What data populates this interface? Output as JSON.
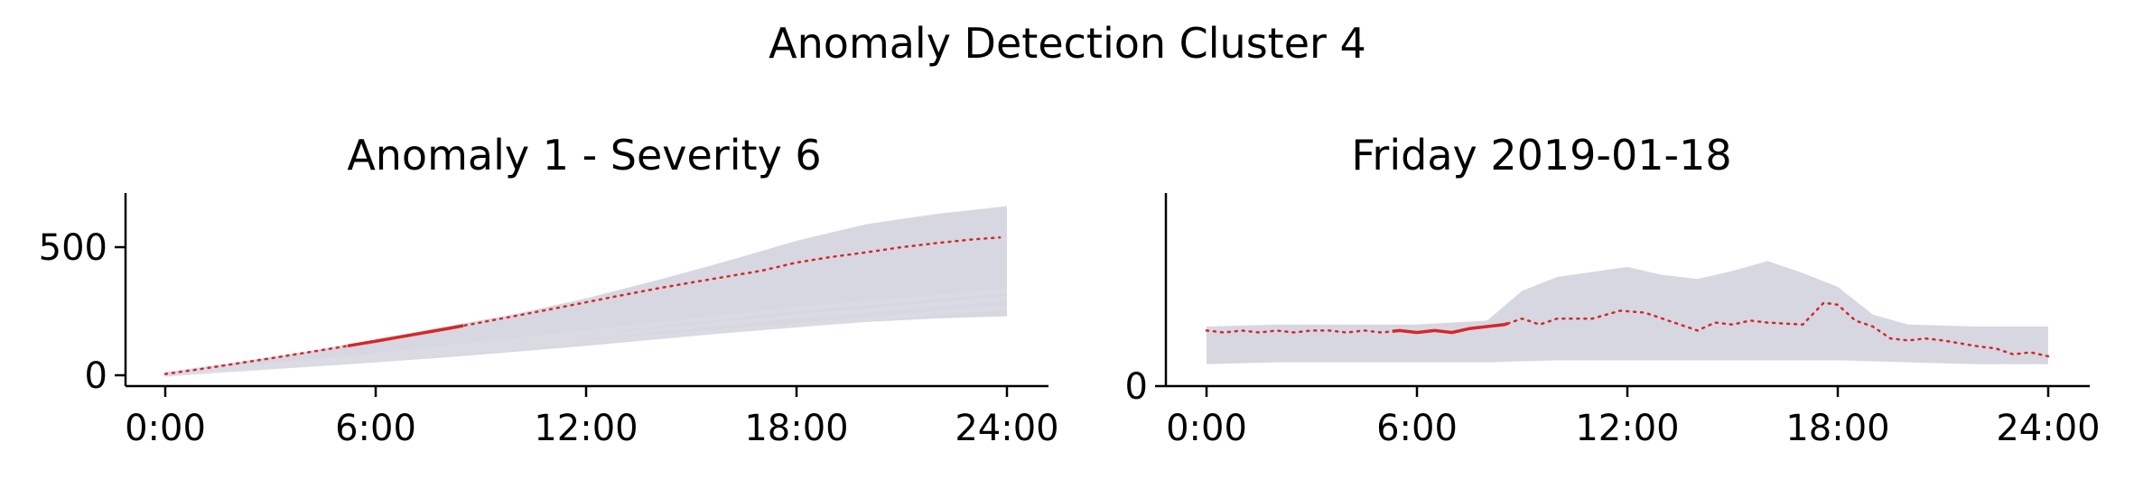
{
  "figure": {
    "title": "Anomaly Detection Cluster 4"
  },
  "chart_data": [
    {
      "type": "line",
      "title": "Anomaly 1 - Severity 6",
      "xlabel": "",
      "ylabel": "",
      "x_range_hours": [
        0,
        24
      ],
      "ylim": [
        -10,
        700
      ],
      "xticks": [
        {
          "value": 0,
          "label": "0:00"
        },
        {
          "value": 6,
          "label": "6:00"
        },
        {
          "value": 12,
          "label": "12:00"
        },
        {
          "value": 18,
          "label": "18:00"
        },
        {
          "value": 24,
          "label": "24:00"
        }
      ],
      "yticks": [
        {
          "value": 0,
          "label": "0"
        },
        {
          "value": 500,
          "label": "500"
        }
      ],
      "grid": false,
      "background_band": {
        "color": "#d3d3de",
        "lower": [
          [
            0,
            2
          ],
          [
            2,
            16
          ],
          [
            4,
            32
          ],
          [
            6,
            50
          ],
          [
            8,
            70
          ],
          [
            10,
            92
          ],
          [
            12,
            115
          ],
          [
            14,
            140
          ],
          [
            16,
            165
          ],
          [
            18,
            188
          ],
          [
            20,
            208
          ],
          [
            22,
            222
          ],
          [
            24,
            230
          ]
        ],
        "upper": [
          [
            0,
            12
          ],
          [
            2,
            50
          ],
          [
            4,
            92
          ],
          [
            6,
            140
          ],
          [
            8,
            190
          ],
          [
            10,
            240
          ],
          [
            12,
            300
          ],
          [
            14,
            370
          ],
          [
            16,
            445
          ],
          [
            18,
            525
          ],
          [
            20,
            590
          ],
          [
            22,
            630
          ],
          [
            24,
            660
          ]
        ],
        "faint_lines": [
          [
            [
              0,
              3
            ],
            [
              6,
              60
            ],
            [
              12,
              130
            ],
            [
              18,
              195
            ],
            [
              24,
              265
            ]
          ],
          [
            [
              0,
              4
            ],
            [
              6,
              70
            ],
            [
              12,
              150
            ],
            [
              18,
              230
            ],
            [
              24,
              300
            ]
          ],
          [
            [
              0,
              5
            ],
            [
              6,
              78
            ],
            [
              12,
              168
            ],
            [
              18,
              258
            ],
            [
              24,
              330
            ]
          ]
        ]
      },
      "anomaly_series": {
        "color": "#d62728",
        "observed_hours": [
          5.2,
          8.5
        ],
        "points": [
          [
            0,
            5
          ],
          [
            1,
            24
          ],
          [
            2,
            45
          ],
          [
            3,
            66
          ],
          [
            4,
            88
          ],
          [
            5,
            110
          ],
          [
            6,
            133
          ],
          [
            7,
            157
          ],
          [
            8,
            181
          ],
          [
            9,
            206
          ],
          [
            10,
            232
          ],
          [
            11,
            258
          ],
          [
            12,
            285
          ],
          [
            13,
            312
          ],
          [
            14,
            338
          ],
          [
            15,
            362
          ],
          [
            16,
            385
          ],
          [
            17,
            408
          ],
          [
            18,
            440
          ],
          [
            19,
            462
          ],
          [
            20,
            480
          ],
          [
            21,
            500
          ],
          [
            22,
            516
          ],
          [
            23,
            530
          ],
          [
            23.8,
            538
          ]
        ]
      }
    },
    {
      "type": "line",
      "title": "Friday 2019-01-18",
      "xlabel": "",
      "ylabel": "",
      "x_range_hours": [
        0,
        24
      ],
      "ylim": [
        0,
        100
      ],
      "xticks": [
        {
          "value": 0,
          "label": "0:00"
        },
        {
          "value": 6,
          "label": "6:00"
        },
        {
          "value": 12,
          "label": "12:00"
        },
        {
          "value": 18,
          "label": "18:00"
        },
        {
          "value": 24,
          "label": "24:00"
        }
      ],
      "yticks": [
        {
          "value": 0,
          "label": "0"
        }
      ],
      "grid": false,
      "background_band": {
        "color": "#d3d3de",
        "lower": [
          [
            0,
            11
          ],
          [
            2,
            12
          ],
          [
            4,
            12
          ],
          [
            6,
            12
          ],
          [
            8,
            12
          ],
          [
            10,
            13
          ],
          [
            12,
            13
          ],
          [
            14,
            13
          ],
          [
            16,
            13
          ],
          [
            18,
            13
          ],
          [
            20,
            12
          ],
          [
            22,
            11
          ],
          [
            24,
            11
          ]
        ],
        "upper": [
          [
            0,
            30
          ],
          [
            2,
            31
          ],
          [
            4,
            31
          ],
          [
            6,
            31
          ],
          [
            8,
            33
          ],
          [
            9,
            48
          ],
          [
            10,
            55
          ],
          [
            12,
            60
          ],
          [
            13,
            56
          ],
          [
            14,
            54
          ],
          [
            15,
            58
          ],
          [
            16,
            63
          ],
          [
            17,
            57
          ],
          [
            18,
            50
          ],
          [
            19,
            36
          ],
          [
            20,
            31
          ],
          [
            22,
            30
          ],
          [
            24,
            30
          ]
        ],
        "faint_lines": []
      },
      "anomaly_series": {
        "color": "#d62728",
        "observed_hours": [
          5.3,
          8.6
        ],
        "points": [
          [
            0,
            28
          ],
          [
            0.5,
            27
          ],
          [
            1,
            28
          ],
          [
            1.5,
            27
          ],
          [
            2,
            28
          ],
          [
            2.5,
            27
          ],
          [
            3,
            28
          ],
          [
            3.5,
            28
          ],
          [
            4,
            27
          ],
          [
            4.5,
            28
          ],
          [
            5,
            27
          ],
          [
            5.5,
            28
          ],
          [
            6,
            27
          ],
          [
            6.5,
            28
          ],
          [
            7,
            27
          ],
          [
            7.5,
            29
          ],
          [
            8,
            30
          ],
          [
            8.5,
            31
          ],
          [
            9,
            34
          ],
          [
            9.5,
            31
          ],
          [
            10,
            34
          ],
          [
            11,
            34
          ],
          [
            11.8,
            38
          ],
          [
            12.5,
            37
          ],
          [
            13,
            34
          ],
          [
            14,
            28
          ],
          [
            14.5,
            32
          ],
          [
            15,
            31
          ],
          [
            15.5,
            33
          ],
          [
            16,
            32
          ],
          [
            17,
            31
          ],
          [
            17.6,
            42
          ],
          [
            18,
            41
          ],
          [
            18.5,
            33
          ],
          [
            19,
            30
          ],
          [
            19.5,
            24
          ],
          [
            20,
            23
          ],
          [
            20.5,
            24
          ],
          [
            21,
            23
          ],
          [
            22,
            20
          ],
          [
            22.5,
            19
          ],
          [
            23,
            16
          ],
          [
            23.5,
            17
          ],
          [
            24,
            15
          ]
        ]
      }
    }
  ]
}
